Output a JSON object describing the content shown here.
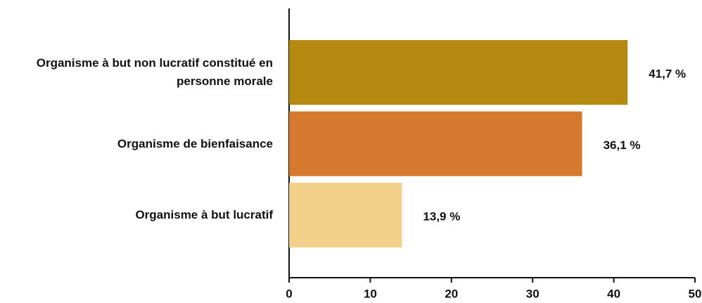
{
  "chart_data": {
    "type": "hbar",
    "categories": [
      "Organisme à but non lucratif constitué en personne morale",
      "Organisme de bienfaisance",
      "Organisme à but lucratif"
    ],
    "values": [
      41.7,
      36.1,
      13.9
    ],
    "value_labels": [
      "41,7 %",
      "36,1 %",
      "13,9 %"
    ],
    "colors": [
      "#b5890f",
      "#d4792e",
      "#f3d08a"
    ],
    "xlim": [
      0,
      50
    ],
    "xticks": [
      0,
      10,
      20,
      30,
      40,
      50
    ]
  }
}
